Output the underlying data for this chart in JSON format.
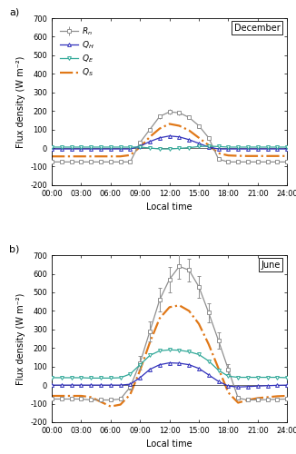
{
  "hours": [
    0,
    1,
    2,
    3,
    4,
    5,
    6,
    7,
    8,
    9,
    10,
    11,
    12,
    13,
    14,
    15,
    16,
    17,
    18,
    19,
    20,
    21,
    22,
    23,
    24
  ],
  "dec_Rn": [
    -75,
    -75,
    -75,
    -75,
    -75,
    -75,
    -75,
    -75,
    -75,
    30,
    100,
    170,
    195,
    190,
    165,
    120,
    55,
    -60,
    -75,
    -75,
    -75,
    -75,
    -75,
    -75,
    -75
  ],
  "dec_Rn_sd": [
    3,
    3,
    3,
    3,
    3,
    3,
    3,
    3,
    3,
    8,
    10,
    12,
    14,
    12,
    10,
    9,
    8,
    5,
    3,
    3,
    3,
    3,
    3,
    3,
    3
  ],
  "dec_QH": [
    -5,
    -5,
    -5,
    -5,
    -5,
    -5,
    -5,
    -5,
    -5,
    10,
    35,
    55,
    65,
    60,
    45,
    25,
    5,
    -5,
    -5,
    -5,
    -5,
    -5,
    -5,
    -5,
    -5
  ],
  "dec_QE": [
    5,
    5,
    5,
    5,
    5,
    5,
    5,
    5,
    5,
    5,
    0,
    -5,
    -5,
    -2,
    2,
    8,
    10,
    8,
    5,
    5,
    5,
    5,
    5,
    5,
    5
  ],
  "dec_QS": [
    -45,
    -45,
    -45,
    -45,
    -45,
    -45,
    -45,
    -45,
    -38,
    5,
    60,
    105,
    130,
    120,
    95,
    55,
    15,
    -28,
    -40,
    -42,
    -43,
    -43,
    -43,
    -43,
    -43
  ],
  "jun_Rn": [
    -75,
    -75,
    -75,
    -75,
    -80,
    -80,
    -80,
    -75,
    -10,
    120,
    290,
    460,
    570,
    640,
    620,
    530,
    390,
    240,
    85,
    -70,
    -80,
    -80,
    -78,
    -76,
    -75
  ],
  "jun_Rn_sd": [
    5,
    5,
    5,
    5,
    5,
    5,
    5,
    6,
    15,
    35,
    55,
    65,
    68,
    65,
    62,
    58,
    52,
    45,
    30,
    10,
    5,
    5,
    5,
    5,
    5
  ],
  "jun_QH": [
    0,
    0,
    0,
    0,
    0,
    0,
    0,
    0,
    5,
    40,
    85,
    110,
    120,
    118,
    110,
    90,
    55,
    20,
    -5,
    -10,
    -8,
    -5,
    -3,
    -1,
    0
  ],
  "jun_QE": [
    40,
    40,
    40,
    40,
    38,
    38,
    38,
    40,
    60,
    110,
    160,
    185,
    190,
    188,
    180,
    165,
    130,
    80,
    48,
    42,
    42,
    42,
    42,
    42,
    40
  ],
  "jun_QS": [
    -58,
    -58,
    -58,
    -58,
    -65,
    -90,
    -115,
    -105,
    -50,
    80,
    230,
    360,
    420,
    430,
    400,
    330,
    220,
    90,
    -40,
    -95,
    -80,
    -70,
    -65,
    -60,
    -58
  ],
  "colors": {
    "Rn": "#909090",
    "QH": "#3030bb",
    "QE": "#30a898",
    "QS": "#e07818"
  },
  "ylim": [
    -200,
    700
  ],
  "yticks": [
    -200,
    -100,
    0,
    100,
    200,
    300,
    400,
    500,
    600,
    700
  ],
  "xtick_labels": [
    "00:00",
    "03:00",
    "06:00",
    "09:00",
    "12:00",
    "15:00",
    "18:00",
    "21:00",
    "24:00"
  ],
  "xlabel": "Local time",
  "ylabel": "Flux density (W m⁻²)"
}
